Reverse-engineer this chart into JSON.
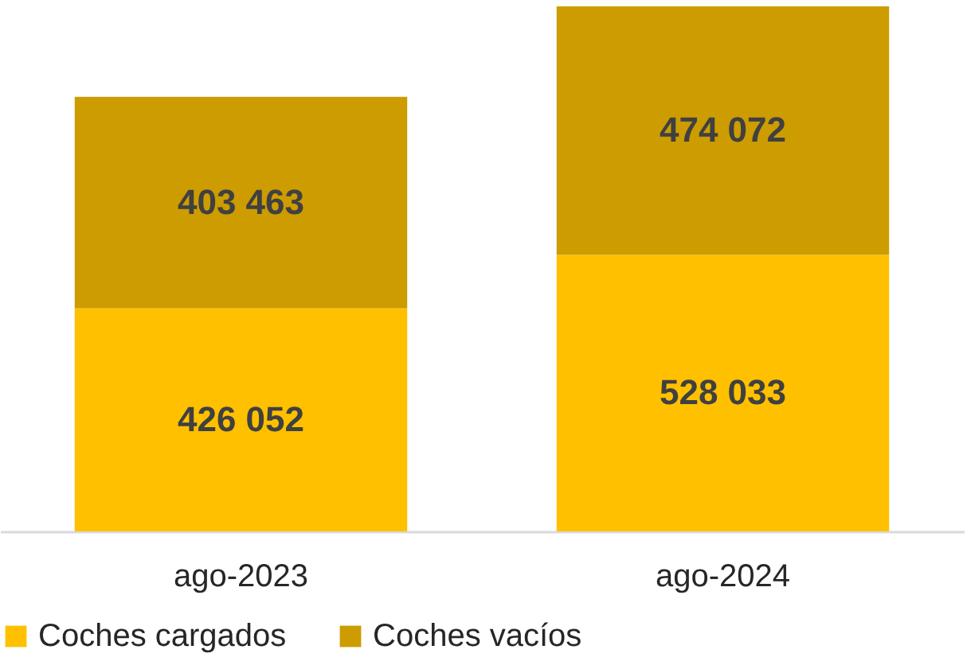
{
  "chart_data": {
    "type": "bar",
    "stacked": true,
    "categories": [
      "ago-2023",
      "ago-2024"
    ],
    "series": [
      {
        "name": "Coches cargados",
        "color": "#ffc000",
        "values": [
          426052,
          528033
        ]
      },
      {
        "name": "Coches vacíos",
        "color": "#cc9c00",
        "values": [
          403463,
          474072
        ]
      }
    ],
    "data_labels": true,
    "legend": "bottom",
    "grid": false
  }
}
